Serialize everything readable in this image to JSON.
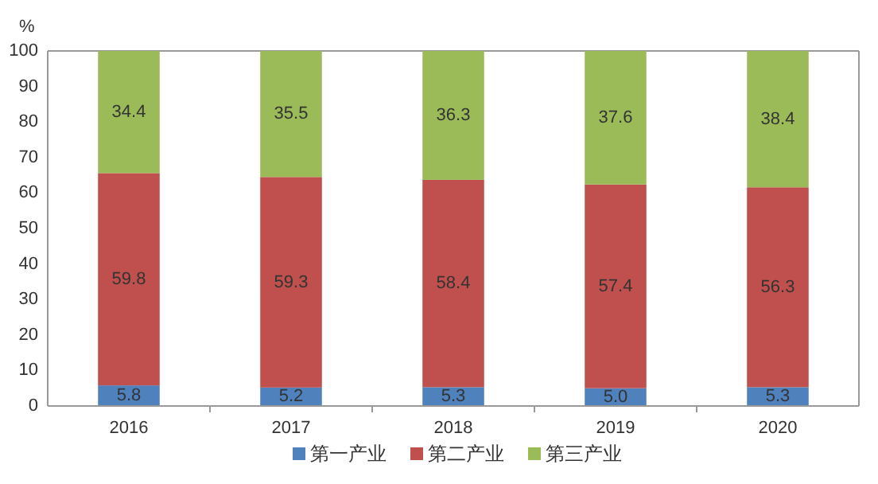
{
  "chart_data": {
    "type": "bar",
    "stacked": true,
    "ylabel": "%",
    "categories": [
      "2016",
      "2017",
      "2018",
      "2019",
      "2020"
    ],
    "series": [
      {
        "name": "第一产业",
        "color": "#4f81bd",
        "values": [
          5.8,
          5.2,
          5.3,
          5.0,
          5.3
        ],
        "value_labels": [
          "5.8",
          "5.2",
          "5.3",
          "5.0",
          "5.3"
        ]
      },
      {
        "name": "第二产业",
        "color": "#c0504d",
        "values": [
          59.8,
          59.3,
          58.4,
          57.4,
          56.3
        ],
        "value_labels": [
          "59.8",
          "59.3",
          "58.4",
          "57.4",
          "56.3"
        ]
      },
      {
        "name": "第三产业",
        "color": "#9bbb59",
        "values": [
          34.4,
          35.5,
          36.3,
          37.6,
          38.4
        ],
        "value_labels": [
          "34.4",
          "35.5",
          "36.3",
          "37.6",
          "38.4"
        ]
      }
    ],
    "ylim": [
      0,
      100
    ],
    "yticks": [
      0,
      10,
      20,
      30,
      40,
      50,
      60,
      70,
      80,
      90,
      100
    ],
    "legend": "bottom"
  }
}
